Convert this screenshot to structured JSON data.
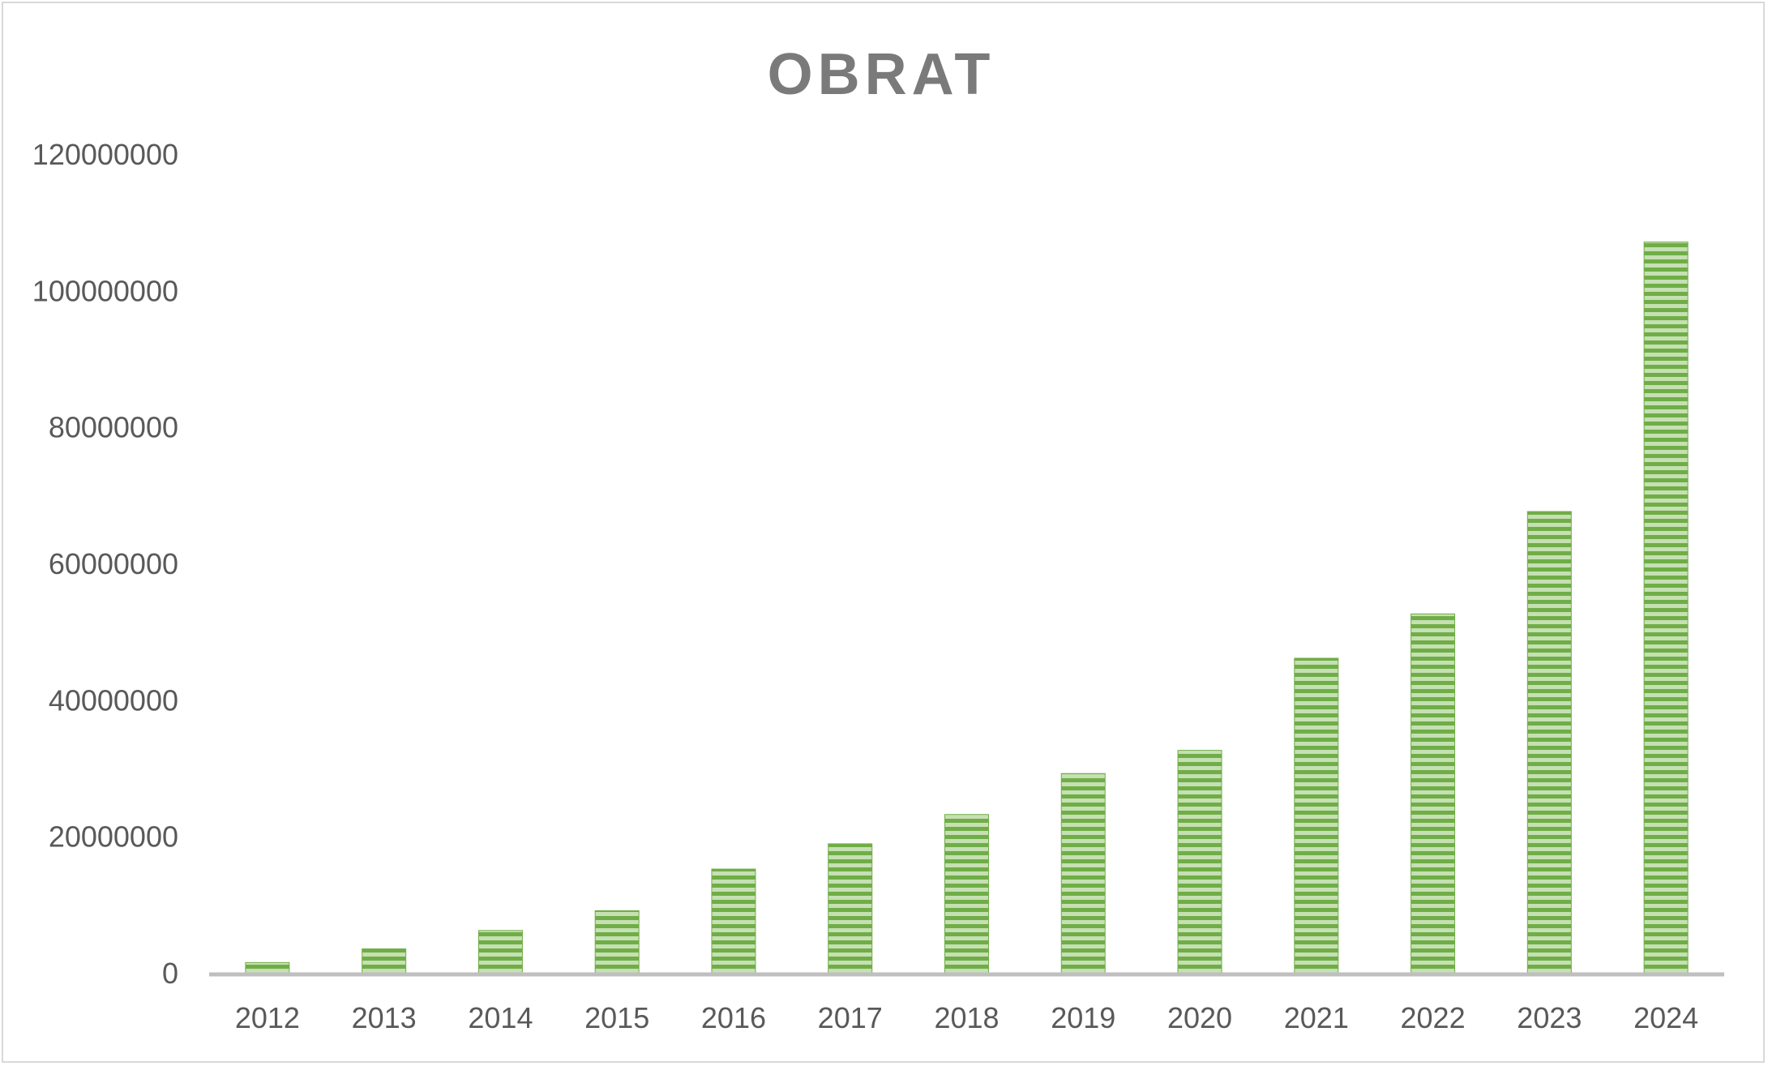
{
  "chart_data": {
    "type": "bar",
    "title": "OBRAT",
    "xlabel": "",
    "ylabel": "",
    "categories": [
      "2012",
      "2013",
      "2014",
      "2015",
      "2016",
      "2017",
      "2018",
      "2019",
      "2020",
      "2021",
      "2022",
      "2023",
      "2024"
    ],
    "values": [
      1500000,
      3500000,
      6200000,
      9100000,
      15200000,
      18900000,
      23200000,
      29200000,
      32600000,
      46100000,
      52600000,
      67600000,
      107100000
    ],
    "ylim": [
      0,
      120000000
    ],
    "yticks": [
      "0",
      "20000000",
      "40000000",
      "60000000",
      "80000000",
      "100000000",
      "120000000"
    ],
    "grid": false,
    "legend": "none",
    "colors": {
      "bar_light": "#c5e0b3",
      "bar_dark": "#70ad47",
      "axis_line": "#bfbfbf",
      "text": "#595959",
      "title": "#7a7a7a"
    }
  }
}
